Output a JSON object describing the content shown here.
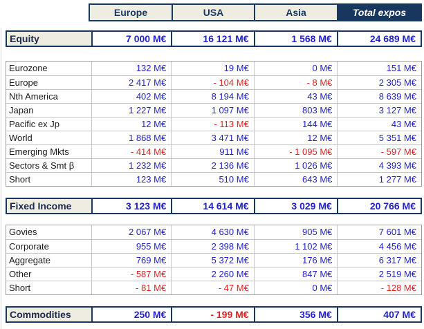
{
  "colors": {
    "navy": "#17375E",
    "header_fill": "#EFEDE1",
    "positive_value": "#2121C8",
    "negative_value": "#E02020",
    "grid_gray": "#9C9C9C"
  },
  "header": {
    "columns": [
      "Europe",
      "USA",
      "Asia",
      "Total expos"
    ]
  },
  "sections": [
    {
      "summary": {
        "label": "Equity",
        "values": [
          "7 000 M€",
          "16 121 M€",
          "1 568 M€",
          "24 689 M€"
        ]
      },
      "rows": [
        {
          "label": "Eurozone",
          "values": [
            "132 M€",
            "19 M€",
            "0 M€",
            "151 M€"
          ]
        },
        {
          "label": "Europe",
          "values": [
            "2 417 M€",
            "- 104 M€",
            "- 8 M€",
            "2 305 M€"
          ]
        },
        {
          "label": "Nth America",
          "values": [
            "402 M€",
            "8 194 M€",
            "43 M€",
            "8 639 M€"
          ]
        },
        {
          "label": "Japan",
          "values": [
            "1 227 M€",
            "1 097 M€",
            "803 M€",
            "3 127 M€"
          ]
        },
        {
          "label": "Pacific ex Jp",
          "values": [
            "12 M€",
            "- 113 M€",
            "144 M€",
            "43 M€"
          ]
        },
        {
          "label": "World",
          "values": [
            "1 868 M€",
            "3 471 M€",
            "12 M€",
            "5 351 M€"
          ]
        },
        {
          "label": "Emerging Mkts",
          "values": [
            "- 414 M€",
            "911 M€",
            "- 1 095 M€",
            "- 597 M€"
          ]
        },
        {
          "label": "Sectors & Smt β",
          "values": [
            "1 232 M€",
            "2 136 M€",
            "1 026 M€",
            "4 393 M€"
          ]
        },
        {
          "label": "Short",
          "values": [
            "123 M€",
            "510 M€",
            "643 M€",
            "1 277 M€"
          ]
        }
      ]
    },
    {
      "summary": {
        "label": "Fixed Income",
        "values": [
          "3 123 M€",
          "14 614 M€",
          "3 029 M€",
          "20 766 M€"
        ]
      },
      "rows": [
        {
          "label": "Govies",
          "values": [
            "2 067 M€",
            "4 630 M€",
            "905 M€",
            "7 601 M€"
          ]
        },
        {
          "label": "Corporate",
          "values": [
            "955 M€",
            "2 398 M€",
            "1 102 M€",
            "4 456 M€"
          ]
        },
        {
          "label": "Aggregate",
          "values": [
            "769 M€",
            "5 372 M€",
            "176 M€",
            "6 317 M€"
          ]
        },
        {
          "label": "Other",
          "values": [
            "- 587 M€",
            "2 260 M€",
            "847 M€",
            "2 519 M€"
          ]
        },
        {
          "label": "Short",
          "values": [
            "- 81 M€",
            "- 47 M€",
            "0 M€",
            "- 128 M€"
          ]
        }
      ]
    },
    {
      "summary": {
        "label": "Commodities",
        "values": [
          "250 M€",
          "- 199 M€",
          "356 M€",
          "407 M€"
        ]
      },
      "rows": []
    }
  ]
}
